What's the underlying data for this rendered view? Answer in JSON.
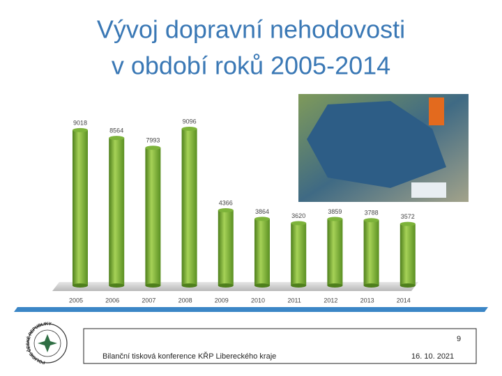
{
  "chart_data": {
    "type": "bar",
    "title_lines": [
      "Vývoj dopravní nehodovosti",
      "v období roků 2005-2014"
    ],
    "categories": [
      "2005",
      "2006",
      "2007",
      "2008",
      "2009",
      "2010",
      "2011",
      "2012",
      "2013",
      "2014"
    ],
    "values": [
      9018,
      8564,
      7993,
      9096,
      4366,
      3864,
      3620,
      3859,
      3788,
      3572
    ],
    "color": "#7db33a"
  },
  "footer": {
    "page": "9",
    "text": "Bilanční tisková konference KŘP Libereckého kraje",
    "date": "16. 10. 2021",
    "logo_text": "POLICIE ČESKÉ REPUBLIKY"
  }
}
